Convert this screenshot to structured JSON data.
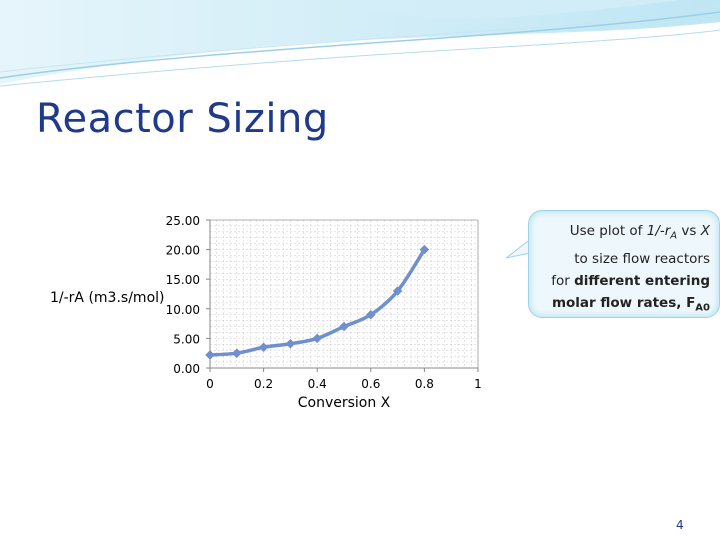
{
  "slide": {
    "title": "Reactor Sizing",
    "page_number": "4"
  },
  "callout": {
    "line1_prefix": "Use plot of ",
    "line1_fn": "1/-r",
    "line1_sub": "A",
    "line1_suffix": " vs ",
    "line1_var": "X",
    "line2": "to size flow reactors",
    "line3_prefix": "for ",
    "line3_bold": "different entering",
    "line4_bold": "molar flow rates, F",
    "line4_sub": "A0"
  },
  "chart_data": {
    "type": "line",
    "xlabel": "Conversion X",
    "ylabel": "1/-rA (m3.s/mol)",
    "xlim": [
      0,
      1
    ],
    "ylim": [
      0,
      25
    ],
    "x_ticks": [
      "0",
      "0.2",
      "0.4",
      "0.6",
      "0.8",
      "1"
    ],
    "y_ticks": [
      "0.00",
      "5.00",
      "10.00",
      "15.00",
      "20.00",
      "25.00"
    ],
    "grid": true,
    "series": [
      {
        "x": [
          0,
          0.1,
          0.2,
          0.3,
          0.4,
          0.5,
          0.6,
          0.7,
          0.8
        ],
        "y": [
          2.2,
          2.5,
          3.5,
          4.1,
          5.0,
          7.0,
          9.0,
          13.0,
          20.0
        ]
      }
    ],
    "colors": {
      "line": "#6f8fcf",
      "marker": "#6f8fcf"
    }
  },
  "colors": {
    "title": "#1f3a8a",
    "banner_light": "#dff1fa",
    "banner_mid": "#a9d9ee"
  }
}
